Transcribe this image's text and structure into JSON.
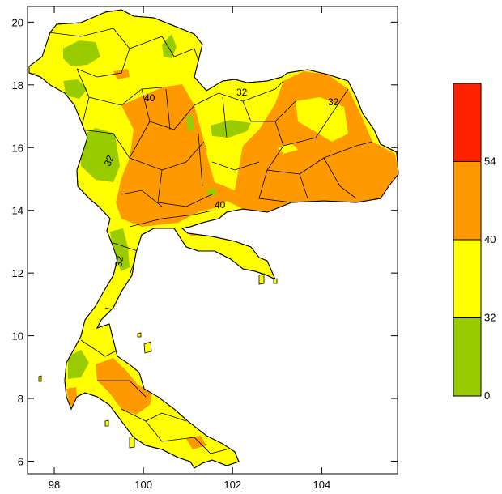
{
  "map": {
    "axes": {
      "x_ticks": [
        "98",
        "100",
        "102",
        "104"
      ],
      "y_ticks": [
        "20",
        "18",
        "16",
        "14",
        "12",
        "10",
        "8",
        "6"
      ],
      "xlim": [
        97.4,
        105.7
      ],
      "ylim": [
        5.6,
        20.5
      ]
    },
    "contour_labels": [
      "32",
      "40",
      "32",
      "40",
      "32",
      "32"
    ],
    "legend": {
      "levels": [
        "54",
        "40",
        "32",
        "0"
      ],
      "bands": [
        {
          "from": 0,
          "to": 32,
          "color": "#99cc00"
        },
        {
          "from": 32,
          "to": 40,
          "color": "#ffff00"
        },
        {
          "from": 40,
          "to": 54,
          "color": "#ff9900"
        },
        {
          "from": 54,
          "to": null,
          "color": "#ff2200"
        }
      ]
    },
    "colors": {
      "green": "#99cc00",
      "yellow": "#ffff00",
      "orange": "#ff9900",
      "red": "#ff2200"
    }
  }
}
